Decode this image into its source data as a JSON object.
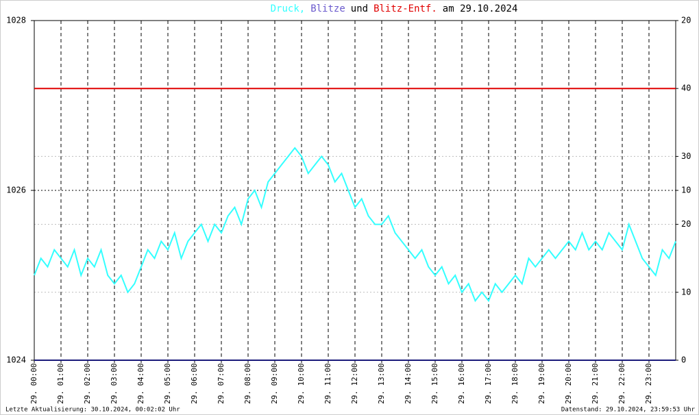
{
  "chart_data": {
    "type": "line",
    "title_parts": [
      {
        "text": "Druck,",
        "color": "#33ffff"
      },
      {
        "text": "Blitze",
        "color": "#6a5acd"
      },
      {
        "text": "und",
        "color": "#000000"
      },
      {
        "text": "Blitz-Entf.",
        "color": "#e00000"
      },
      {
        "text": "am 29.10.2024",
        "color": "#000000"
      }
    ],
    "footer_left": "Letzte Aktualisierung: 30.10.2024, 00:02:02 Uhr",
    "footer_right": "Datenstand: 29.10.2024, 23:59:53 Uhr",
    "xlim": [
      0,
      24
    ],
    "xticks": [
      {
        "value": 0,
        "label": "29. 00:00"
      },
      {
        "value": 1,
        "label": "29. 01:00"
      },
      {
        "value": 2,
        "label": "29. 02:00"
      },
      {
        "value": 3,
        "label": "29. 03:00"
      },
      {
        "value": 4,
        "label": "29. 04:00"
      },
      {
        "value": 5,
        "label": "29. 05:00"
      },
      {
        "value": 6,
        "label": "29. 06:00"
      },
      {
        "value": 7,
        "label": "29. 07:00"
      },
      {
        "value": 8,
        "label": "29. 08:00"
      },
      {
        "value": 9,
        "label": "29. 09:00"
      },
      {
        "value": 10,
        "label": "29. 10:00"
      },
      {
        "value": 11,
        "label": "29. 11:00"
      },
      {
        "value": 12,
        "label": "29. 12:00"
      },
      {
        "value": 13,
        "label": "29. 13:00"
      },
      {
        "value": 14,
        "label": "29. 14:00"
      },
      {
        "value": 15,
        "label": "29. 15:00"
      },
      {
        "value": 16,
        "label": "29. 16:00"
      },
      {
        "value": 17,
        "label": "29. 17:00"
      },
      {
        "value": 18,
        "label": "29. 18:00"
      },
      {
        "value": 19,
        "label": "29. 19:00"
      },
      {
        "value": 20,
        "label": "29. 20:00"
      },
      {
        "value": 21,
        "label": "29. 21:00"
      },
      {
        "value": 22,
        "label": "29. 22:00"
      },
      {
        "value": 23,
        "label": "29. 23:00"
      }
    ],
    "ylim": [
      1024,
      1028
    ],
    "yticks": [
      1024,
      1026,
      1028
    ],
    "y2lim": [
      0,
      50
    ],
    "y2ticks": [
      0,
      10,
      20,
      30,
      40
    ],
    "y3lim": [
      0,
      20
    ],
    "y3ticks": [
      10,
      20
    ],
    "grid": true,
    "series": [
      {
        "name": "Druck",
        "color": "#33ffff",
        "x": [
          0,
          0.25,
          0.5,
          0.75,
          1,
          1.25,
          1.5,
          1.75,
          2,
          2.25,
          2.5,
          2.75,
          3,
          3.25,
          3.5,
          3.75,
          4,
          4.25,
          4.5,
          4.75,
          5,
          5.25,
          5.5,
          5.75,
          6,
          6.25,
          6.5,
          6.75,
          7,
          7.25,
          7.5,
          7.75,
          8,
          8.25,
          8.5,
          8.75,
          9,
          9.25,
          9.5,
          9.75,
          10,
          10.25,
          10.5,
          10.75,
          11,
          11.25,
          11.5,
          11.75,
          12,
          12.25,
          12.5,
          12.75,
          13,
          13.25,
          13.5,
          13.75,
          14,
          14.25,
          14.5,
          14.75,
          15,
          15.25,
          15.5,
          15.75,
          16,
          16.25,
          16.5,
          16.75,
          17,
          17.25,
          17.5,
          17.75,
          18,
          18.25,
          18.5,
          18.75,
          19,
          19.25,
          19.5,
          19.75,
          20,
          20.25,
          20.5,
          20.75,
          21,
          21.25,
          21.5,
          21.75,
          22,
          22.25,
          22.5,
          22.75,
          23,
          23.25,
          23.5,
          23.75,
          24
        ],
        "values": [
          1025.0,
          1025.2,
          1025.1,
          1025.3,
          1025.2,
          1025.1,
          1025.3,
          1025.0,
          1025.2,
          1025.1,
          1025.3,
          1025.0,
          1024.9,
          1025.0,
          1024.8,
          1024.9,
          1025.1,
          1025.3,
          1025.2,
          1025.4,
          1025.3,
          1025.5,
          1025.2,
          1025.4,
          1025.5,
          1025.6,
          1025.4,
          1025.6,
          1025.5,
          1025.7,
          1025.8,
          1025.6,
          1025.9,
          1026.0,
          1025.8,
          1026.1,
          1026.2,
          1026.3,
          1026.4,
          1026.5,
          1026.4,
          1026.2,
          1026.3,
          1026.4,
          1026.3,
          1026.1,
          1026.2,
          1026.0,
          1025.8,
          1025.9,
          1025.7,
          1025.6,
          1025.6,
          1025.7,
          1025.5,
          1025.4,
          1025.3,
          1025.2,
          1025.3,
          1025.1,
          1025.0,
          1025.1,
          1024.9,
          1025.0,
          1024.8,
          1024.9,
          1024.7,
          1024.8,
          1024.7,
          1024.9,
          1024.8,
          1024.9,
          1025.0,
          1024.9,
          1025.2,
          1025.1,
          1025.2,
          1025.3,
          1025.2,
          1025.3,
          1025.4,
          1025.3,
          1025.5,
          1025.3,
          1025.4,
          1025.3,
          1025.5,
          1025.4,
          1025.3,
          1025.6,
          1025.4,
          1025.2,
          1025.1,
          1025.0,
          1025.3,
          1025.2,
          1025.4
        ]
      },
      {
        "name": "Blitze",
        "color": "#1a1a7a",
        "axis": "y3",
        "x": [
          0,
          24
        ],
        "values": [
          0,
          0
        ]
      },
      {
        "name": "Blitz-Entf.",
        "color": "#e00000",
        "axis": "y2",
        "x": [
          0,
          24
        ],
        "values": [
          40,
          40
        ]
      }
    ]
  }
}
